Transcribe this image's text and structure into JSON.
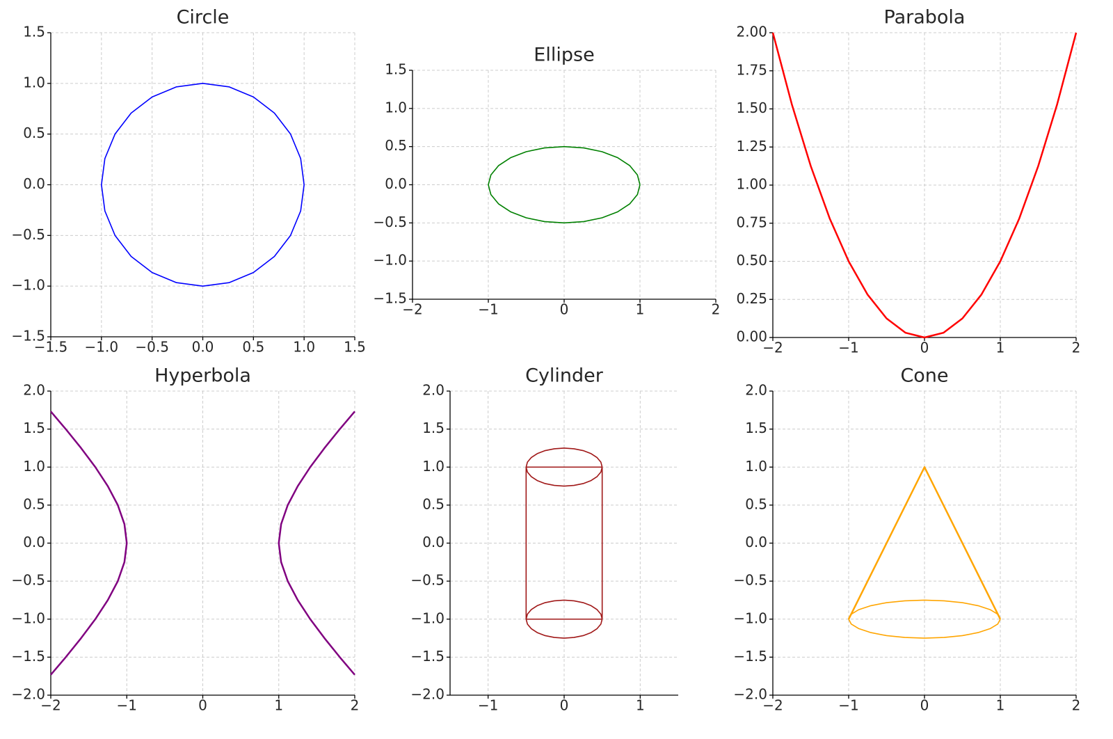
{
  "chart_data": [
    {
      "type": "line",
      "title": "Circle",
      "grid": true,
      "xlim": [
        -1.5,
        1.5
      ],
      "ylim": [
        -1.5,
        1.5
      ],
      "xticks": [
        {
          "value": -1.5,
          "label": "−1.5"
        },
        {
          "value": -1,
          "label": "−1.0"
        },
        {
          "value": -0.5,
          "label": "−0.5"
        },
        {
          "value": 0,
          "label": "0.0"
        },
        0.5,
        {
          "value": 1,
          "label": "1.0"
        },
        1.5
      ],
      "yticks": [
        {
          "value": -1.5,
          "label": "−1.5"
        },
        {
          "value": -1,
          "label": "−1.0"
        },
        {
          "value": -0.5,
          "label": "−0.5"
        },
        {
          "value": 0,
          "label": "0.0"
        },
        0.5,
        {
          "value": 1,
          "label": "1.0"
        },
        1.5
      ],
      "series": [
        {
          "color": "#0000ff",
          "x": [
            1,
            0.966,
            0.866,
            0.707,
            0.5,
            0.259,
            0,
            -0.259,
            -0.5,
            -0.707,
            -0.866,
            -0.966,
            -1,
            -0.966,
            -0.866,
            -0.707,
            -0.5,
            -0.259,
            0,
            0.259,
            0.5,
            0.707,
            0.866,
            0.966,
            1
          ],
          "values": [
            0,
            0.259,
            0.5,
            0.707,
            0.866,
            0.966,
            1,
            0.966,
            0.866,
            0.707,
            0.5,
            0.259,
            0,
            -0.259,
            -0.5,
            -0.707,
            -0.866,
            -0.966,
            -1,
            -0.966,
            -0.866,
            -0.707,
            -0.5,
            -0.259,
            0
          ]
        }
      ]
    },
    {
      "type": "line",
      "title": "Ellipse",
      "grid": true,
      "xlim": [
        -2,
        2
      ],
      "ylim": [
        -1.5,
        1.5
      ],
      "xticks": [
        {
          "value": -2,
          "label": "−2"
        },
        {
          "value": -1,
          "label": "−1"
        },
        0,
        1,
        2
      ],
      "yticks": [
        {
          "value": -1.5,
          "label": "−1.5"
        },
        {
          "value": -1,
          "label": "−1.0"
        },
        {
          "value": -0.5,
          "label": "−0.5"
        },
        {
          "value": 0,
          "label": "0.0"
        },
        0.5,
        {
          "value": 1,
          "label": "1.0"
        },
        1.5
      ],
      "series": [
        {
          "color": "#008000",
          "x": [
            1,
            0.966,
            0.866,
            0.707,
            0.5,
            0.259,
            0,
            -0.259,
            -0.5,
            -0.707,
            -0.866,
            -0.966,
            -1,
            -0.966,
            -0.866,
            -0.707,
            -0.5,
            -0.259,
            0,
            0.259,
            0.5,
            0.707,
            0.866,
            0.966,
            1
          ],
          "values": [
            0,
            0.129,
            0.25,
            0.354,
            0.433,
            0.483,
            0.5,
            0.483,
            0.433,
            0.354,
            0.25,
            0.129,
            0,
            -0.129,
            -0.25,
            -0.354,
            -0.433,
            -0.483,
            -0.5,
            -0.483,
            -0.433,
            -0.354,
            -0.25,
            -0.129,
            0
          ]
        }
      ]
    },
    {
      "type": "line",
      "title": "Parabola",
      "grid": true,
      "xlim": [
        -2,
        2
      ],
      "ylim": [
        0,
        2
      ],
      "xticks": [
        {
          "value": -2,
          "label": "−2"
        },
        {
          "value": -1,
          "label": "−1"
        },
        0,
        1,
        2
      ],
      "yticks": [
        {
          "value": 0,
          "label": "0.00"
        },
        0.25,
        {
          "value": 0.5,
          "label": "0.50"
        },
        0.75,
        {
          "value": 1,
          "label": "1.00"
        },
        1.25,
        {
          "value": 1.5,
          "label": "1.50"
        },
        1.75,
        {
          "value": 2,
          "label": "2.00"
        }
      ],
      "series": [
        {
          "color": "#ff0000",
          "width": 2.5,
          "x": [
            -2,
            -1.75,
            -1.5,
            -1.25,
            -1,
            -0.75,
            -0.5,
            -0.25,
            0,
            0.25,
            0.5,
            0.75,
            1,
            1.25,
            1.5,
            1.75,
            2
          ],
          "values": [
            2,
            1.531,
            1.125,
            0.781,
            0.5,
            0.281,
            0.125,
            0.031,
            0,
            0.031,
            0.125,
            0.281,
            0.5,
            0.781,
            1.125,
            1.531,
            2
          ]
        }
      ]
    },
    {
      "type": "line",
      "title": "Hyperbola",
      "grid": true,
      "xlim": [
        -2,
        2
      ],
      "ylim": [
        -2,
        2
      ],
      "xticks": [
        {
          "value": -2,
          "label": "−2"
        },
        {
          "value": -1,
          "label": "−1"
        },
        0,
        1,
        2
      ],
      "yticks": [
        {
          "value": -2,
          "label": "−2.0"
        },
        {
          "value": -1.5,
          "label": "−1.5"
        },
        {
          "value": -1,
          "label": "−1.0"
        },
        {
          "value": -0.5,
          "label": "−0.5"
        },
        {
          "value": 0,
          "label": "0.0"
        },
        0.5,
        {
          "value": 1,
          "label": "1.0"
        },
        1.5,
        {
          "value": 2,
          "label": "2.0"
        }
      ],
      "series": [
        {
          "color": "#800080",
          "width": 2.5,
          "x": [
            2,
            1.803,
            1.601,
            1.414,
            1.25,
            1.118,
            1.031,
            1,
            1.031,
            1.118,
            1.25,
            1.414,
            1.601,
            1.803,
            2
          ],
          "values": [
            -1.732,
            -1.5,
            -1.25,
            -1,
            -0.75,
            -0.5,
            -0.25,
            0,
            0.25,
            0.5,
            0.75,
            1,
            1.25,
            1.5,
            1.732
          ]
        },
        {
          "color": "#800080",
          "width": 2.5,
          "x": [
            -2,
            -1.803,
            -1.601,
            -1.414,
            -1.25,
            -1.118,
            -1.031,
            -1,
            -1.031,
            -1.118,
            -1.25,
            -1.414,
            -1.601,
            -1.803,
            -2
          ],
          "values": [
            -1.732,
            -1.5,
            -1.25,
            -1,
            -0.75,
            -0.5,
            -0.25,
            0,
            0.25,
            0.5,
            0.75,
            1,
            1.25,
            1.5,
            1.732
          ]
        }
      ]
    },
    {
      "type": "line",
      "title": "Cylinder",
      "grid": true,
      "xlim": [
        -1.5,
        1.5
      ],
      "ylim": [
        -2,
        2
      ],
      "xticks": [
        {
          "value": -1,
          "label": "−1"
        },
        0,
        1
      ],
      "yticks": [
        {
          "value": -2,
          "label": "−2.0"
        },
        {
          "value": -1.5,
          "label": "−1.5"
        },
        {
          "value": -1,
          "label": "−1.0"
        },
        {
          "value": -0.5,
          "label": "−0.5"
        },
        {
          "value": 0,
          "label": "0.0"
        },
        0.5,
        {
          "value": 1,
          "label": "1.0"
        },
        1.5,
        {
          "value": 2,
          "label": "2.0"
        }
      ],
      "series": [
        {
          "color": "#a01818",
          "x": [
            0.5,
            0.483,
            0.433,
            0.354,
            0.25,
            0.129,
            0,
            -0.129,
            -0.25,
            -0.354,
            -0.433,
            -0.483,
            -0.5,
            -0.483,
            -0.433,
            -0.354,
            -0.25,
            -0.129,
            0,
            0.129,
            0.25,
            0.354,
            0.433,
            0.483,
            0.5
          ],
          "values": [
            1,
            1.065,
            1.125,
            1.177,
            1.217,
            1.241,
            1.25,
            1.241,
            1.217,
            1.177,
            1.125,
            1.065,
            1,
            0.935,
            0.875,
            0.823,
            0.783,
            0.759,
            0.75,
            0.759,
            0.783,
            0.823,
            0.875,
            0.935,
            1
          ]
        },
        {
          "color": "#a01818",
          "x": [
            0.5,
            0.483,
            0.433,
            0.354,
            0.25,
            0.129,
            0,
            -0.129,
            -0.25,
            -0.354,
            -0.433,
            -0.483,
            -0.5,
            -0.483,
            -0.433,
            -0.354,
            -0.25,
            -0.129,
            0,
            0.129,
            0.25,
            0.354,
            0.433,
            0.483,
            0.5
          ],
          "values": [
            -1,
            -0.935,
            -0.875,
            -0.823,
            -0.783,
            -0.759,
            -0.75,
            -0.759,
            -0.783,
            -0.823,
            -0.875,
            -0.935,
            -1,
            -1.065,
            -1.125,
            -1.177,
            -1.217,
            -1.241,
            -1.25,
            -1.241,
            -1.217,
            -1.177,
            -1.125,
            -1.065,
            -1
          ]
        },
        {
          "color": "#a01818",
          "x": [
            -0.5,
            -0.5,
            null,
            0.5,
            0.5,
            null,
            -0.5,
            0.5,
            null,
            -0.5,
            0.5
          ],
          "values": [
            -1,
            1,
            null,
            -1,
            1,
            null,
            1,
            1,
            null,
            -1,
            -1
          ]
        }
      ]
    },
    {
      "type": "line",
      "title": "Cone",
      "grid": true,
      "xlim": [
        -2,
        2
      ],
      "ylim": [
        -2,
        2
      ],
      "xticks": [
        {
          "value": -2,
          "label": "−2"
        },
        {
          "value": -1,
          "label": "−1"
        },
        0,
        1,
        2
      ],
      "yticks": [
        {
          "value": -2,
          "label": "−2.0"
        },
        {
          "value": -1.5,
          "label": "−1.5"
        },
        {
          "value": -1,
          "label": "−1.0"
        },
        {
          "value": -0.5,
          "label": "−0.5"
        },
        {
          "value": 0,
          "label": "0.0"
        },
        0.5,
        {
          "value": 1,
          "label": "1.0"
        },
        1.5,
        {
          "value": 2,
          "label": "2.0"
        }
      ],
      "series": [
        {
          "color": "#ffa500",
          "width": 2.5,
          "x": [
            -1,
            0,
            1
          ],
          "values": [
            -1,
            1,
            -1
          ]
        },
        {
          "color": "#ffa500",
          "x": [
            1,
            0.966,
            0.866,
            0.707,
            0.5,
            0.259,
            0,
            -0.259,
            -0.5,
            -0.707,
            -0.866,
            -0.966,
            -1,
            -0.966,
            -0.866,
            -0.707,
            -0.5,
            -0.259,
            0,
            0.259,
            0.5,
            0.707,
            0.866,
            0.966,
            1
          ],
          "values": [
            -1,
            -0.935,
            -0.875,
            -0.823,
            -0.783,
            -0.759,
            -0.75,
            -0.759,
            -0.783,
            -0.823,
            -0.875,
            -0.935,
            -1,
            -1.065,
            -1.125,
            -1.177,
            -1.217,
            -1.241,
            -1.25,
            -1.241,
            -1.217,
            -1.177,
            -1.125,
            -1.065,
            -1
          ]
        }
      ]
    }
  ]
}
